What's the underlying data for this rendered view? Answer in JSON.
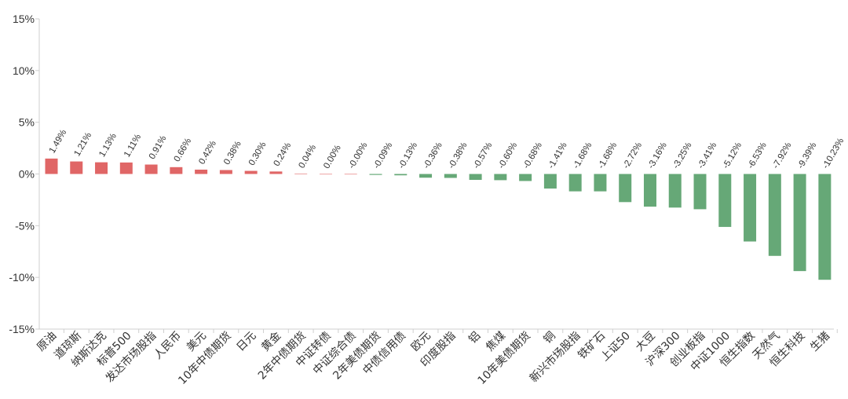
{
  "chart_data": {
    "type": "bar",
    "title": "",
    "xlabel": "",
    "ylabel": "",
    "ylim": [
      -15,
      15
    ],
    "yticks": [
      15,
      10,
      5,
      0,
      -5,
      -10,
      -15
    ],
    "ytick_labels": [
      "15%",
      "10%",
      "5%",
      "0%",
      "-5%",
      "-10%",
      "-15%"
    ],
    "grid": false,
    "legend": "none",
    "colors": {
      "positive": "#e06666",
      "negative": "#66a877",
      "axis": "#cfcfcf",
      "text": "#333333"
    },
    "categories": [
      "原油",
      "道琼斯",
      "纳斯达克",
      "标普500",
      "发达市场股指",
      "人民币",
      "美元",
      "10年中债期货",
      "日元",
      "黄金",
      "2年中债期货",
      "中证转债",
      "中证综合债",
      "2年美债期货",
      "中债信用债",
      "欧元",
      "印度股指",
      "铝",
      "焦煤",
      "10年美债期货",
      "铜",
      "新兴市场股指",
      "铁矿石",
      "上证50",
      "大豆",
      "沪深300",
      "创业板指",
      "中证1000",
      "恒生指数",
      "天然气",
      "恒生科技",
      "生猪"
    ],
    "values": [
      1.49,
      1.21,
      1.13,
      1.11,
      0.91,
      0.66,
      0.42,
      0.38,
      0.3,
      0.24,
      0.04,
      0.0,
      -0.0,
      -0.09,
      -0.13,
      -0.36,
      -0.38,
      -0.57,
      -0.6,
      -0.68,
      -1.41,
      -1.68,
      -1.68,
      -2.72,
      -3.16,
      -3.25,
      -3.41,
      -5.12,
      -6.53,
      -7.92,
      -9.39,
      -10.23
    ],
    "data_labels": [
      "1.49%",
      "1.21%",
      "1.13%",
      "1.11%",
      "0.91%",
      "0.66%",
      "0.42%",
      "0.38%",
      "0.30%",
      "0.24%",
      "0.04%",
      "0.00%",
      "-0.00%",
      "-0.09%",
      "-0.13%",
      "-0.36%",
      "-0.38%",
      "-0.57%",
      "-0.60%",
      "-0.68%",
      "-1.41%",
      "-1.68%",
      "-1.68%",
      "-2.72%",
      "-3.16%",
      "-3.25%",
      "-3.41%",
      "-5.12%",
      "-6.53%",
      "-7.92%",
      "-9.39%",
      "-10.23%"
    ]
  }
}
